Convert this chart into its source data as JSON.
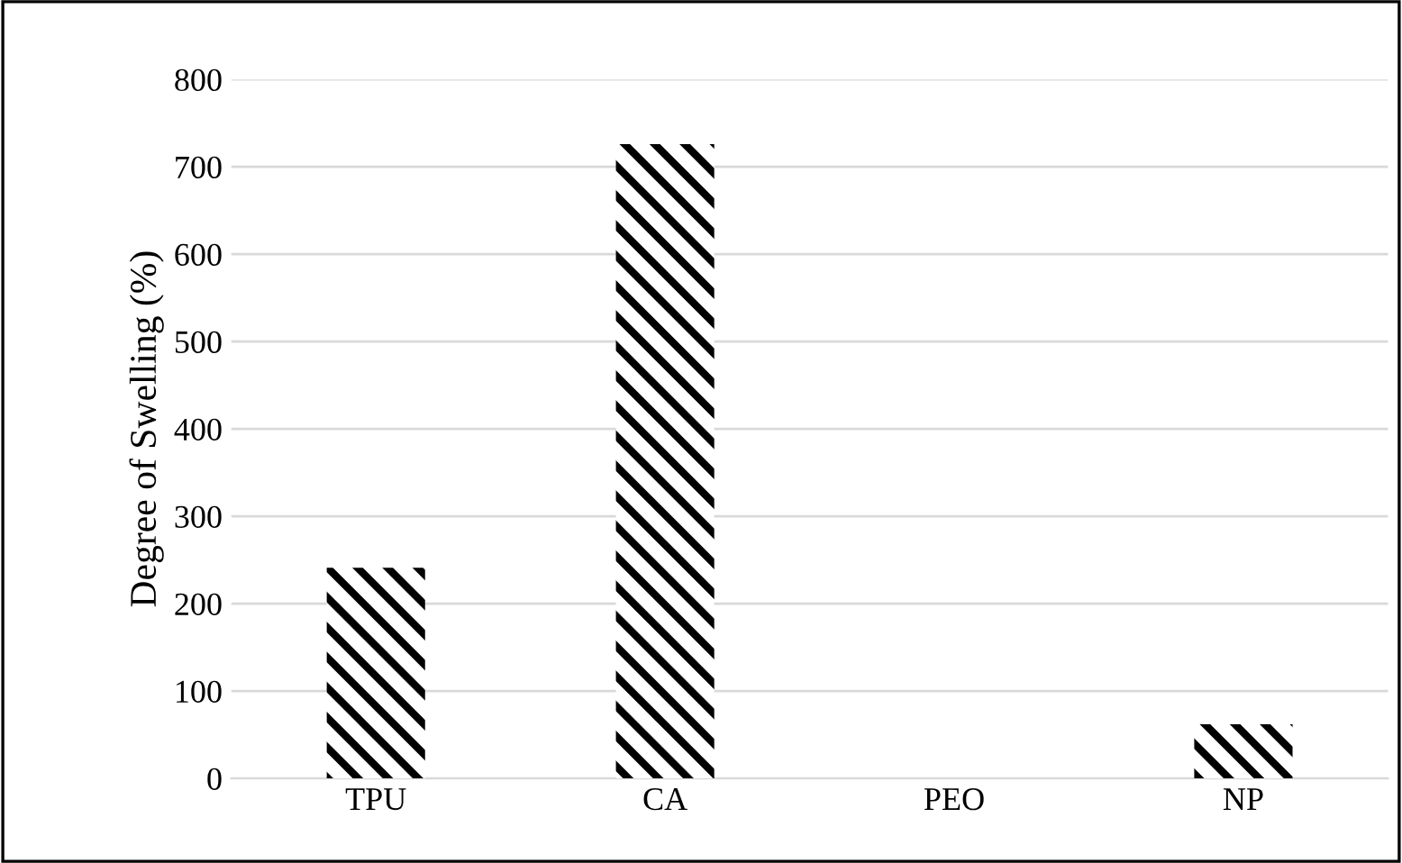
{
  "chart_data": {
    "type": "bar",
    "ylabel": "Degree of Swelling (%)",
    "categories": [
      "TPU",
      "CA",
      "PEO",
      "NP"
    ],
    "values": [
      241,
      726,
      0,
      62
    ],
    "color": "#000000",
    "ylim": [
      0,
      800
    ],
    "yticks": [
      0,
      100,
      200,
      300,
      400,
      500,
      600,
      700,
      800
    ],
    "grid": "y"
  }
}
